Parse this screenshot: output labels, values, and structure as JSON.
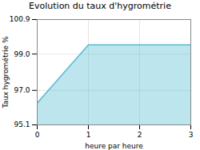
{
  "chart_data": {
    "type": "area",
    "title": "Evolution du taux d'hygrométrie",
    "xlabel": "heure par heure",
    "ylabel": "Taux hygrométrie %",
    "x": [
      0,
      1,
      3
    ],
    "values": [
      96.3,
      99.5,
      99.5
    ],
    "xlim": [
      0,
      3
    ],
    "ylim": [
      95.1,
      100.9
    ],
    "xticks": [
      0,
      1,
      2,
      3
    ],
    "yticks": [
      95.1,
      {
        "value": 97.0,
        "label": "97.0"
      },
      {
        "value": 99.0,
        "label": "99.0"
      },
      100.9
    ],
    "color": "#5bbdd4",
    "grid": true
  }
}
